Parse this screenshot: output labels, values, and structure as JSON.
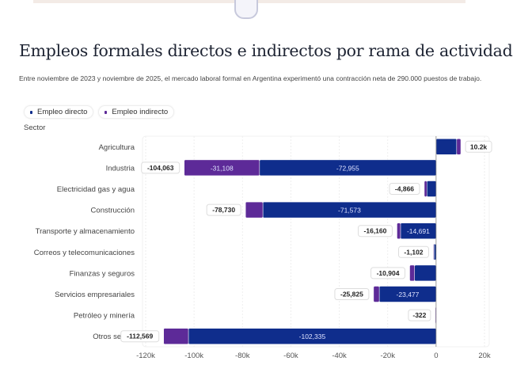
{
  "chart_data": {
    "type": "bar",
    "orientation": "horizontal",
    "stacked": true,
    "title": "Empleos formales directos e indirectos por rama de actividad",
    "subtitle": "Entre noviembre de 2023 y noviembre de 2025, el mercado laboral formal en Argentina experimentó una contracción neta de 290.000 puestos de trabajo.",
    "ylabel": "Sector",
    "xlim": [
      -120000,
      20000
    ],
    "xticks": [
      "-120k",
      "-100k",
      "-80k",
      "-60k",
      "-40k",
      "-20k",
      "0",
      "20k"
    ],
    "xtick_values": [
      -120000,
      -100000,
      -80000,
      -60000,
      -40000,
      -20000,
      0,
      20000
    ],
    "grid": true,
    "legend_placement": "top-left",
    "categories": [
      "Agricultura",
      "Industria",
      "Electricidad gas y agua",
      "Construcción",
      "Transporte y almacenamiento",
      "Correos y telecomunicaciones",
      "Finanzas y seguros",
      "Servicios empresariales",
      "Petróleo y minería",
      "Otros servici"
    ],
    "series": [
      {
        "name": "Empleo directo",
        "color": "#0f2d8c",
        "values": [
          8500,
          -72955,
          -3800,
          -71573,
          -14691,
          -1000,
          -8900,
          -23477,
          -300,
          -102335
        ],
        "labels": [
          "",
          "-72,955",
          "",
          "-71,573",
          "-14,691",
          "",
          "",
          "-23,477",
          "",
          "-102,335"
        ]
      },
      {
        "name": "Empleo indirecto",
        "color": "#5d2a98",
        "values": [
          1700,
          -31108,
          -1066,
          -7157,
          -1469,
          -102,
          -2004,
          -2348,
          -22,
          -10234
        ],
        "labels": [
          "",
          "-31,108",
          "",
          "",
          "",
          "",
          "",
          "",
          "",
          ""
        ]
      }
    ],
    "totals": [
      "10.2k",
      "-104,063",
      "-4,866",
      "-78,730",
      "-16,160",
      "-1,102",
      "-10,904",
      "-25,825",
      "-322",
      "-112,569"
    ]
  }
}
